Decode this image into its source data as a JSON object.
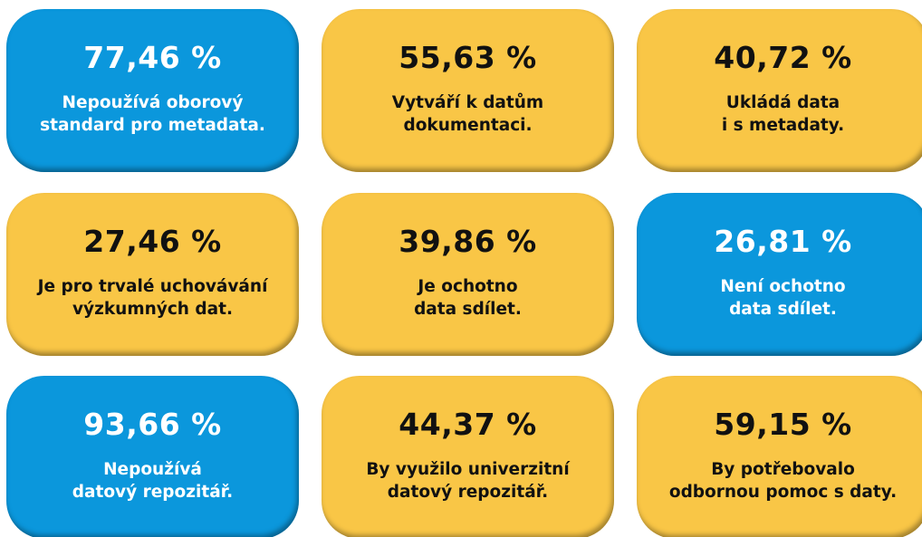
{
  "cards": [
    {
      "value": "77,46 %",
      "lines": [
        "Nepoužívá oborový",
        "standard pro metadata."
      ],
      "color": "#0b97dc",
      "text_color": "#ffffff"
    },
    {
      "value": "55,63 %",
      "lines": [
        "Vytváří k datům",
        "dokumentaci."
      ],
      "color": "#f9c646",
      "text_color": "#111111"
    },
    {
      "value": "40,72 %",
      "lines": [
        "Ukládá data",
        "i s metadaty."
      ],
      "color": "#f9c646",
      "text_color": "#111111"
    },
    {
      "value": "27,46 %",
      "lines": [
        "Je pro trvalé uchovávání",
        "výzkumných dat."
      ],
      "color": "#f9c646",
      "text_color": "#111111"
    },
    {
      "value": "39,86 %",
      "lines": [
        "Je ochotno",
        "data sdílet."
      ],
      "color": "#f9c646",
      "text_color": "#111111"
    },
    {
      "value": "26,81 %",
      "lines": [
        "Není ochotno",
        "data sdílet."
      ],
      "color": "#0b97dc",
      "text_color": "#ffffff"
    },
    {
      "value": "93,66 %",
      "lines": [
        "Nepoužívá",
        "datový repozitář."
      ],
      "color": "#0b97dc",
      "text_color": "#ffffff"
    },
    {
      "value": "44,37 %",
      "lines": [
        "By využilo univerzitní",
        "datový repozitář."
      ],
      "color": "#f9c646",
      "text_color": "#111111"
    },
    {
      "value": "59,15 %",
      "lines": [
        "By potřebovalo",
        "odbornou pomoc s daty."
      ],
      "color": "#f9c646",
      "text_color": "#111111"
    }
  ]
}
